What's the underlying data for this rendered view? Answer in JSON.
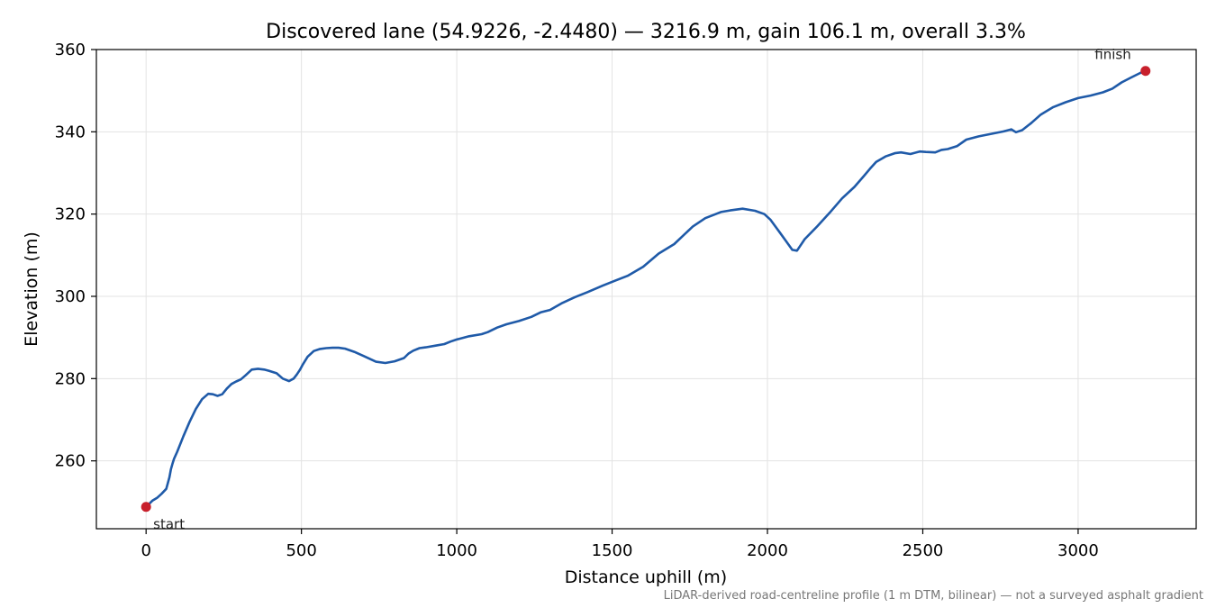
{
  "chart_data": {
    "type": "line",
    "title": "Discovered lane (54.9226, -2.4480) — 3216.9 m, gain 106.1 m, overall 3.3%",
    "xlabel": "Distance uphill (m)",
    "ylabel": "Elevation (m)",
    "xlim": [
      -160,
      3380
    ],
    "ylim": [
      243.5,
      360
    ],
    "x_ticks": [
      0,
      500,
      1000,
      1500,
      2000,
      2500,
      3000
    ],
    "y_ticks": [
      260,
      280,
      300,
      320,
      340,
      360
    ],
    "grid": true,
    "line_color": "#1f5aa8",
    "marker_color": "#c8202c",
    "series": [
      {
        "x": [
          0,
          20,
          35,
          50,
          65,
          75,
          80,
          85,
          90,
          100,
          120,
          140,
          160,
          180,
          200,
          215,
          230,
          245,
          260,
          275,
          290,
          305,
          320,
          340,
          360,
          380,
          395,
          420,
          440,
          460,
          475,
          485,
          495,
          505,
          520,
          540,
          560,
          580,
          600,
          620,
          640,
          670,
          700,
          740,
          770,
          800,
          830,
          845,
          860,
          880,
          900,
          930,
          960,
          980,
          1000,
          1040,
          1080,
          1100,
          1130,
          1160,
          1200,
          1240,
          1270,
          1300,
          1340,
          1380,
          1420,
          1470,
          1510,
          1550,
          1600,
          1650,
          1700,
          1760,
          1800,
          1850,
          1880,
          1920,
          1960,
          1990,
          2010,
          2040,
          2060,
          2080,
          2095,
          2120,
          2160,
          2200,
          2240,
          2280,
          2310,
          2330,
          2350,
          2380,
          2410,
          2430,
          2460,
          2490,
          2510,
          2540,
          2560,
          2580,
          2610,
          2640,
          2680,
          2720,
          2760,
          2785,
          2800,
          2820,
          2850,
          2880,
          2920,
          2960,
          3000,
          3040,
          3080,
          3110,
          3140,
          3170,
          3200,
          3216.9
        ],
        "y": [
          248.8,
          250.3,
          251.0,
          252.0,
          253.2,
          256.0,
          258.0,
          259.3,
          260.5,
          262.2,
          266.0,
          269.5,
          272.6,
          275.0,
          276.3,
          276.2,
          275.8,
          276.2,
          277.6,
          278.7,
          279.3,
          279.8,
          280.8,
          282.2,
          282.4,
          282.2,
          281.9,
          281.3,
          280.0,
          279.4,
          280.0,
          281.0,
          282.1,
          283.5,
          285.3,
          286.7,
          287.2,
          287.4,
          287.5,
          287.5,
          287.3,
          286.5,
          285.5,
          284.1,
          283.8,
          284.2,
          285.0,
          286.1,
          286.8,
          287.4,
          287.6,
          288.0,
          288.4,
          289.0,
          289.5,
          290.3,
          290.8,
          291.3,
          292.4,
          293.2,
          294.0,
          295.0,
          296.1,
          296.7,
          298.4,
          299.8,
          301.0,
          302.6,
          303.8,
          305.0,
          307.2,
          310.4,
          312.7,
          317.0,
          319.0,
          320.5,
          320.9,
          321.3,
          320.8,
          320.0,
          318.6,
          315.5,
          313.4,
          311.3,
          311.1,
          313.9,
          317.0,
          320.3,
          323.8,
          326.6,
          329.2,
          331.0,
          332.7,
          334.0,
          334.8,
          335.0,
          334.6,
          335.2,
          335.1,
          335.0,
          335.6,
          335.8,
          336.5,
          338.1,
          338.9,
          339.5,
          340.1,
          340.6,
          339.9,
          340.4,
          342.2,
          344.2,
          346.0,
          347.2,
          348.2,
          348.8,
          349.6,
          350.5,
          352.0,
          353.2,
          354.3,
          354.8
        ]
      }
    ],
    "annotations": [
      {
        "text": "start",
        "x": 0,
        "y": 248.8
      },
      {
        "text": "finish",
        "x": 3216.9,
        "y": 354.8
      }
    ],
    "footnote": "LiDAR-derived road-centreline profile (1 m DTM, bilinear) — not a surveyed asphalt gradient"
  }
}
